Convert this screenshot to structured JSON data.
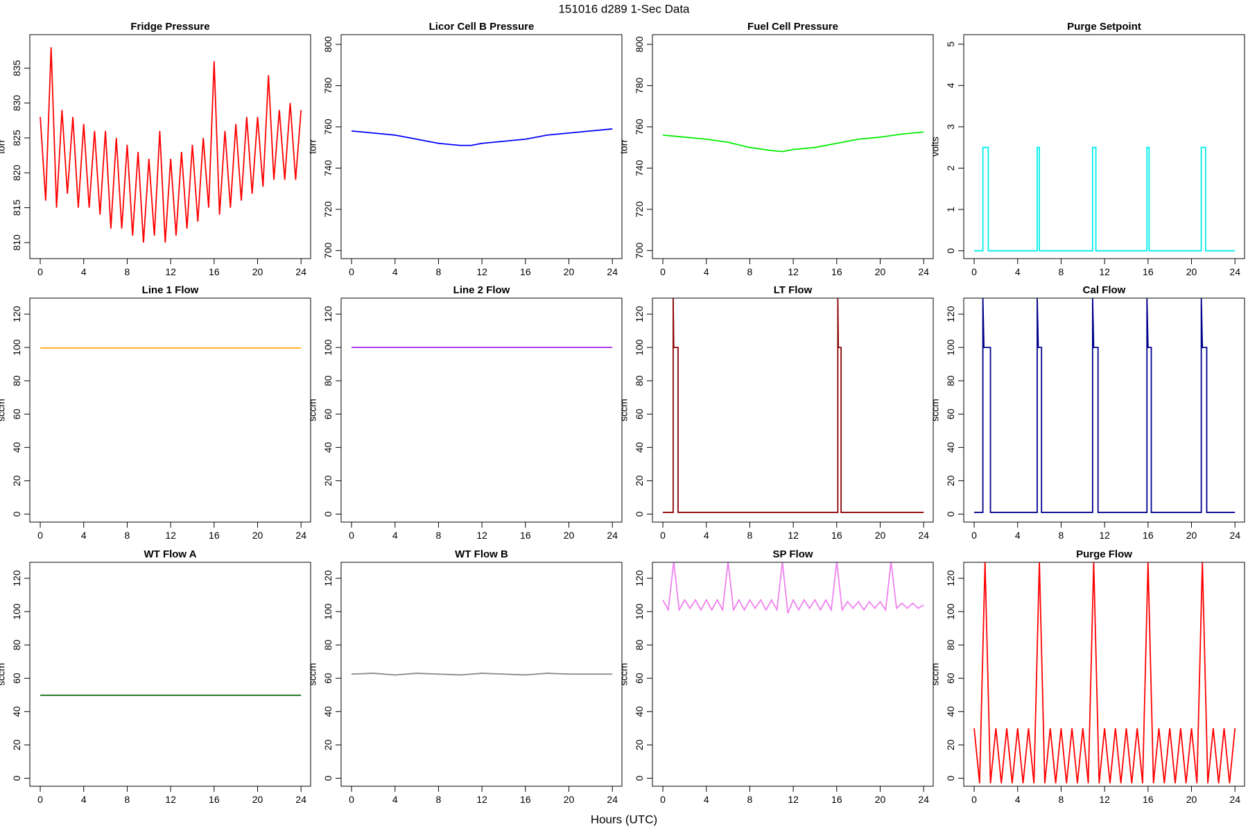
{
  "title": "151016   d289   1-Sec Data",
  "xlabel": "Hours (UTC)",
  "chart_data": [
    {
      "type": "line",
      "title": "Fridge Pressure",
      "ylabel": "torr",
      "color": "#ff0000",
      "x": [
        0,
        0.5,
        1,
        1.5,
        2,
        2.5,
        3,
        3.5,
        4,
        4.5,
        5,
        5.5,
        6,
        6.5,
        7,
        7.5,
        8,
        8.5,
        9,
        9.5,
        10,
        10.5,
        11,
        11.5,
        12,
        12.5,
        13,
        13.5,
        14,
        14.5,
        15,
        15.5,
        16,
        16.5,
        17,
        17.5,
        18,
        18.5,
        19,
        19.5,
        20,
        20.5,
        21,
        21.5,
        22,
        22.5,
        23,
        23.5,
        24
      ],
      "values": [
        828,
        816,
        838,
        815,
        829,
        817,
        828,
        815,
        827,
        815,
        826,
        814,
        826,
        812,
        825,
        812,
        824,
        811,
        823,
        810,
        822,
        811,
        826,
        810,
        822,
        811,
        823,
        812,
        824,
        813,
        825,
        815,
        836,
        814,
        826,
        815,
        827,
        816,
        828,
        817,
        828,
        818,
        834,
        819,
        829,
        819,
        830,
        819,
        829
      ],
      "xlim": [
        -0.96,
        24.88
      ],
      "xticks": [
        0,
        4,
        8,
        12,
        16,
        20,
        24
      ],
      "ylim": [
        807.7,
        839.8
      ],
      "yticks": [
        810,
        815,
        820,
        825,
        830,
        835
      ]
    },
    {
      "type": "line",
      "title": "Licor Cell B Pressure",
      "ylabel": "torr",
      "color": "#0000ff",
      "x": [
        0,
        2,
        4,
        6,
        8,
        10,
        11,
        12,
        14,
        16,
        18,
        20,
        22,
        24
      ],
      "values": [
        758,
        757,
        756,
        754,
        752,
        751,
        751,
        752,
        753,
        754,
        756,
        757,
        758,
        759
      ],
      "xlim": [
        -0.96,
        24.88
      ],
      "xticks": [
        0,
        4,
        8,
        12,
        16,
        20,
        24
      ],
      "ylim": [
        696.1,
        804.7
      ],
      "yticks": [
        700,
        720,
        740,
        760,
        780,
        800
      ]
    },
    {
      "type": "line",
      "title": "Fuel Cell Pressure",
      "ylabel": "torr",
      "color": "#00ee00",
      "x": [
        0,
        2,
        4,
        6,
        8,
        10,
        11,
        12,
        14,
        16,
        18,
        20,
        22,
        24
      ],
      "values": [
        756,
        755,
        754,
        752.5,
        750,
        748.5,
        748,
        749,
        750,
        752,
        754,
        755,
        756.5,
        757.5
      ],
      "xlim": [
        -0.96,
        24.88
      ],
      "xticks": [
        0,
        4,
        8,
        12,
        16,
        20,
        24
      ],
      "ylim": [
        696.1,
        804.7
      ],
      "yticks": [
        700,
        720,
        740,
        760,
        780,
        800
      ]
    },
    {
      "type": "line",
      "title": "Purge Setpoint",
      "ylabel": "volts",
      "color": "#00eeee",
      "x": [
        0,
        0.8,
        0.8,
        1.3,
        1.3,
        5.8,
        5.8,
        6.0,
        6.0,
        10.9,
        10.9,
        11.2,
        11.2,
        15.9,
        15.9,
        16.1,
        16.1,
        20.9,
        20.9,
        21.3,
        21.3,
        24
      ],
      "values": [
        0,
        0,
        2.5,
        2.5,
        0,
        0,
        2.5,
        2.5,
        0,
        0,
        2.5,
        2.5,
        0,
        0,
        2.5,
        2.5,
        0,
        0,
        2.5,
        2.5,
        0,
        0
      ],
      "xlim": [
        -0.96,
        24.88
      ],
      "xticks": [
        0,
        4,
        8,
        12,
        16,
        20,
        24
      ],
      "ylim": [
        -0.19,
        5.23
      ],
      "yticks": [
        0,
        1,
        2,
        3,
        4,
        5
      ]
    },
    {
      "type": "line",
      "title": "Line 1 Flow",
      "ylabel": "sccm",
      "color": "#ffa500",
      "x": [
        0,
        12,
        24
      ],
      "values": [
        99.7,
        99.7,
        99.7
      ],
      "xlim": [
        -0.96,
        24.88
      ],
      "xticks": [
        0,
        4,
        8,
        12,
        16,
        20,
        24
      ],
      "ylim": [
        -4.8,
        129.6
      ],
      "yticks": [
        0,
        20,
        40,
        60,
        80,
        100,
        120
      ]
    },
    {
      "type": "line",
      "title": "Line 2 Flow",
      "ylabel": "sccm",
      "color": "#a020f0",
      "x": [
        0,
        12,
        24
      ],
      "values": [
        100,
        100,
        100
      ],
      "xlim": [
        -0.96,
        24.88
      ],
      "xticks": [
        0,
        4,
        8,
        12,
        16,
        20,
        24
      ],
      "ylim": [
        -4.8,
        129.6
      ],
      "yticks": [
        0,
        20,
        40,
        60,
        80,
        100,
        120
      ]
    },
    {
      "type": "line",
      "title": "LT Flow",
      "ylabel": "sccm",
      "color": "#8b0000",
      "x": [
        0,
        0.95,
        0.95,
        1.0,
        1.4,
        1.4,
        16.1,
        16.1,
        16.15,
        16.4,
        16.4,
        24
      ],
      "values": [
        1,
        1,
        130,
        100,
        100,
        1,
        1,
        130,
        100,
        100,
        1,
        1
      ],
      "xlim": [
        -0.96,
        24.88
      ],
      "xticks": [
        0,
        4,
        8,
        12,
        16,
        20,
        24
      ],
      "ylim": [
        -4.8,
        129.6
      ],
      "yticks": [
        0,
        20,
        40,
        60,
        80,
        100,
        120
      ]
    },
    {
      "type": "line",
      "title": "Cal Flow",
      "ylabel": "sccm",
      "color": "#00008b",
      "x": [
        0,
        0.8,
        0.8,
        0.9,
        1.5,
        1.5,
        5.8,
        5.8,
        5.9,
        6.2,
        6.2,
        10.9,
        10.9,
        11,
        11.4,
        11.4,
        15.9,
        15.9,
        16,
        16.3,
        16.3,
        20.9,
        20.9,
        21,
        21.4,
        21.4,
        24
      ],
      "values": [
        1,
        1,
        130,
        100,
        100,
        1,
        1,
        130,
        100,
        100,
        1,
        1,
        130,
        100,
        100,
        1,
        1,
        130,
        100,
        100,
        1,
        1,
        130,
        100,
        100,
        1,
        1
      ],
      "xlim": [
        -0.96,
        24.88
      ],
      "xticks": [
        0,
        4,
        8,
        12,
        16,
        20,
        24
      ],
      "ylim": [
        -4.8,
        129.6
      ],
      "yticks": [
        0,
        20,
        40,
        60,
        80,
        100,
        120
      ]
    },
    {
      "type": "line",
      "title": "WT Flow A",
      "ylabel": "sccm",
      "color": "#006400",
      "x": [
        0,
        12,
        24
      ],
      "values": [
        49.8,
        49.8,
        49.8
      ],
      "xlim": [
        -0.96,
        24.88
      ],
      "xticks": [
        0,
        4,
        8,
        12,
        16,
        20,
        24
      ],
      "ylim": [
        -4.8,
        129.6
      ],
      "yticks": [
        0,
        20,
        40,
        60,
        80,
        100,
        120
      ]
    },
    {
      "type": "line",
      "title": "WT Flow B",
      "ylabel": "sccm",
      "color": "#888888",
      "x": [
        0,
        2,
        4,
        6,
        8,
        10,
        12,
        14,
        16,
        18,
        20,
        22,
        24
      ],
      "values": [
        62.5,
        63,
        62,
        63,
        62.5,
        62,
        63,
        62.5,
        62,
        63,
        62.5,
        62.5,
        62.5
      ],
      "xlim": [
        -0.96,
        24.88
      ],
      "xticks": [
        0,
        4,
        8,
        12,
        16,
        20,
        24
      ],
      "ylim": [
        -4.8,
        129.6
      ],
      "yticks": [
        0,
        20,
        40,
        60,
        80,
        100,
        120
      ]
    },
    {
      "type": "line",
      "title": "SP Flow",
      "ylabel": "sccm",
      "color": "#ee82ee",
      "x": [
        0,
        0.5,
        1,
        1.5,
        2,
        2.5,
        3,
        3.5,
        4,
        4.5,
        5,
        5.5,
        6,
        6.5,
        7,
        7.5,
        8,
        8.5,
        9,
        9.5,
        10,
        10.5,
        11,
        11.5,
        12,
        12.5,
        13,
        13.5,
        14,
        14.5,
        15,
        15.5,
        16,
        16.5,
        17,
        17.5,
        18,
        18.5,
        19,
        19.5,
        20,
        20.5,
        21,
        21.5,
        22,
        22.5,
        23,
        23.5,
        24
      ],
      "values": [
        107,
        101,
        130,
        101,
        107,
        102,
        107,
        101,
        107,
        101,
        107,
        101,
        130,
        101,
        107,
        101,
        107,
        102,
        107,
        101,
        107,
        101,
        130,
        99,
        107,
        101,
        107,
        102,
        107,
        101,
        107,
        101,
        130,
        101,
        106,
        102,
        106,
        101,
        106,
        102,
        106,
        101,
        130,
        102,
        105,
        102,
        105,
        102,
        104
      ],
      "xlim": [
        -0.96,
        24.88
      ],
      "xticks": [
        0,
        4,
        8,
        12,
        16,
        20,
        24
      ],
      "ylim": [
        -4.8,
        129.6
      ],
      "yticks": [
        0,
        20,
        40,
        60,
        80,
        100,
        120
      ]
    },
    {
      "type": "line",
      "title": "Purge Flow",
      "ylabel": "sccm",
      "color": "#ff0000",
      "x": [
        0,
        0.5,
        1,
        1.5,
        2,
        2.5,
        3,
        3.5,
        4,
        4.5,
        5,
        5.5,
        6,
        6.5,
        7,
        7.5,
        8,
        8.5,
        9,
        9.5,
        10,
        10.5,
        11,
        11.5,
        12,
        12.5,
        13,
        13.5,
        14,
        14.5,
        15,
        15.5,
        16,
        16.5,
        17,
        17.5,
        18,
        18.5,
        19,
        19.5,
        20,
        20.5,
        21,
        21.5,
        22,
        22.5,
        23,
        23.5,
        24
      ],
      "values": [
        30,
        -3,
        130,
        -3,
        30,
        -3,
        30,
        -3,
        30,
        -3,
        30,
        -3,
        130,
        -3,
        30,
        -3,
        30,
        -3,
        30,
        -3,
        30,
        -3,
        130,
        -3,
        30,
        -3,
        30,
        -3,
        30,
        -3,
        30,
        -3,
        130,
        -3,
        30,
        -3,
        30,
        -3,
        30,
        -3,
        30,
        -3,
        130,
        -3,
        30,
        -3,
        30,
        -3,
        30
      ],
      "xlim": [
        -0.96,
        24.88
      ],
      "xticks": [
        0,
        4,
        8,
        12,
        16,
        20,
        24
      ],
      "ylim": [
        -4.8,
        129.6
      ],
      "yticks": [
        0,
        20,
        40,
        60,
        80,
        100,
        120
      ]
    }
  ]
}
